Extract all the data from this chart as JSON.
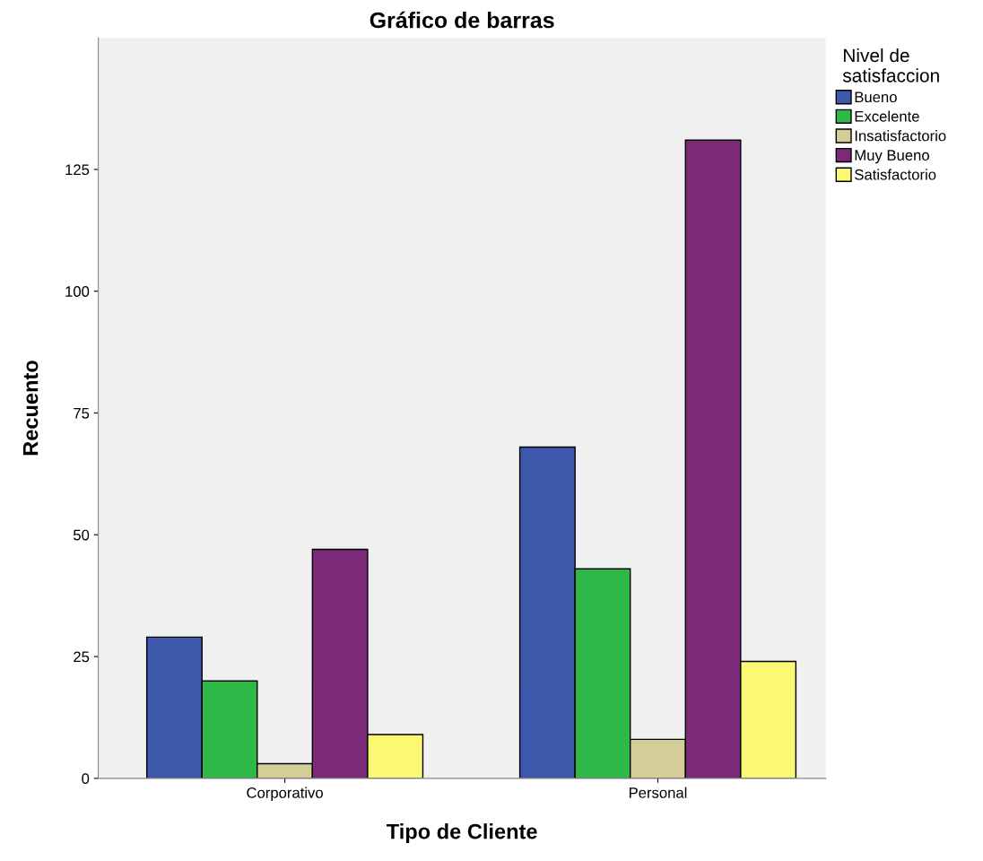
{
  "chart_data": {
    "type": "bar",
    "title": "Gráfico de barras",
    "xlabel": "Tipo de Cliente",
    "ylabel": "Recuento",
    "legend_title": "Nivel de\nsatisfaccion",
    "categories": [
      "Corporativo",
      "Personal"
    ],
    "series": [
      {
        "name": "Bueno",
        "color": "#3e58ac",
        "values": [
          29,
          68
        ]
      },
      {
        "name": "Excelente",
        "color": "#2eb848",
        "values": [
          20,
          43
        ]
      },
      {
        "name": "Insatisfactorio",
        "color": "#d3ce97",
        "values": [
          3,
          8
        ]
      },
      {
        "name": "Muy Bueno",
        "color": "#7b2979",
        "values": [
          47,
          131
        ]
      },
      {
        "name": "Satisfactorio",
        "color": "#fbf873",
        "values": [
          9,
          24
        ]
      }
    ],
    "ylim": [
      0,
      152
    ],
    "yticks": [
      0,
      25,
      50,
      75,
      100,
      125
    ],
    "grid": false,
    "legend": "top right"
  }
}
